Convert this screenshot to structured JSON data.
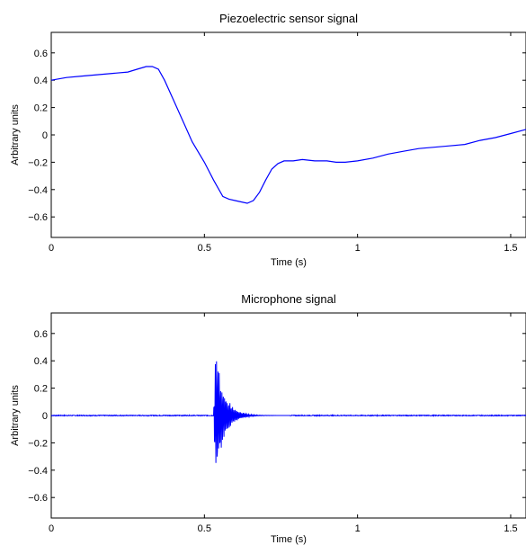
{
  "chart_data": [
    {
      "type": "line",
      "title": "Piezoelectric sensor signal",
      "xlabel": "Time (s)",
      "ylabel": "Arbitrary units",
      "xlim": [
        0,
        1.55
      ],
      "ylim": [
        -0.75,
        0.75
      ],
      "xticks": [
        "0",
        "0.5",
        "1",
        "1.5"
      ],
      "yticks": [
        "0.6",
        "0.4",
        "0.2",
        "0",
        "−0.2",
        "−0.4",
        "−0.6"
      ],
      "grid": false,
      "color": "#0000ff",
      "series": [
        {
          "x": [
            0,
            0.05,
            0.1,
            0.15,
            0.2,
            0.25,
            0.28,
            0.31,
            0.33,
            0.35,
            0.37,
            0.4,
            0.43,
            0.46,
            0.5,
            0.53,
            0.56,
            0.58,
            0.6,
            0.62,
            0.64,
            0.66,
            0.68,
            0.7,
            0.72,
            0.74,
            0.76,
            0.79,
            0.82,
            0.86,
            0.9,
            0.93,
            0.96,
            1.0,
            1.05,
            1.1,
            1.15,
            1.2,
            1.25,
            1.3,
            1.35,
            1.4,
            1.45,
            1.5,
            1.55
          ],
          "y": [
            0.4,
            0.42,
            0.43,
            0.44,
            0.45,
            0.46,
            0.48,
            0.5,
            0.5,
            0.48,
            0.4,
            0.25,
            0.1,
            -0.05,
            -0.2,
            -0.33,
            -0.45,
            -0.47,
            -0.48,
            -0.49,
            -0.5,
            -0.48,
            -0.42,
            -0.33,
            -0.25,
            -0.21,
            -0.19,
            -0.19,
            -0.18,
            -0.19,
            -0.19,
            -0.2,
            -0.2,
            -0.19,
            -0.17,
            -0.14,
            -0.12,
            -0.1,
            -0.09,
            -0.08,
            -0.07,
            -0.04,
            -0.02,
            0.01,
            0.04
          ]
        }
      ]
    },
    {
      "type": "line",
      "title": "Microphone signal",
      "xlabel": "Time (s)",
      "ylabel": "Arbitrary units",
      "xlim": [
        0,
        1.55
      ],
      "ylim": [
        -0.75,
        0.75
      ],
      "xticks": [
        "0",
        "0.5",
        "1",
        "1.5"
      ],
      "yticks": [
        "0.6",
        "0.4",
        "0.2",
        "0",
        "−0.2",
        "−0.4",
        "−0.6"
      ],
      "grid": false,
      "color": "#0000ff",
      "series": [
        {
          "baseline": 0,
          "burst_start": 0.53,
          "burst_peak": 0.5,
          "burst_min": -0.5,
          "decay_end": 0.78
        }
      ]
    }
  ]
}
